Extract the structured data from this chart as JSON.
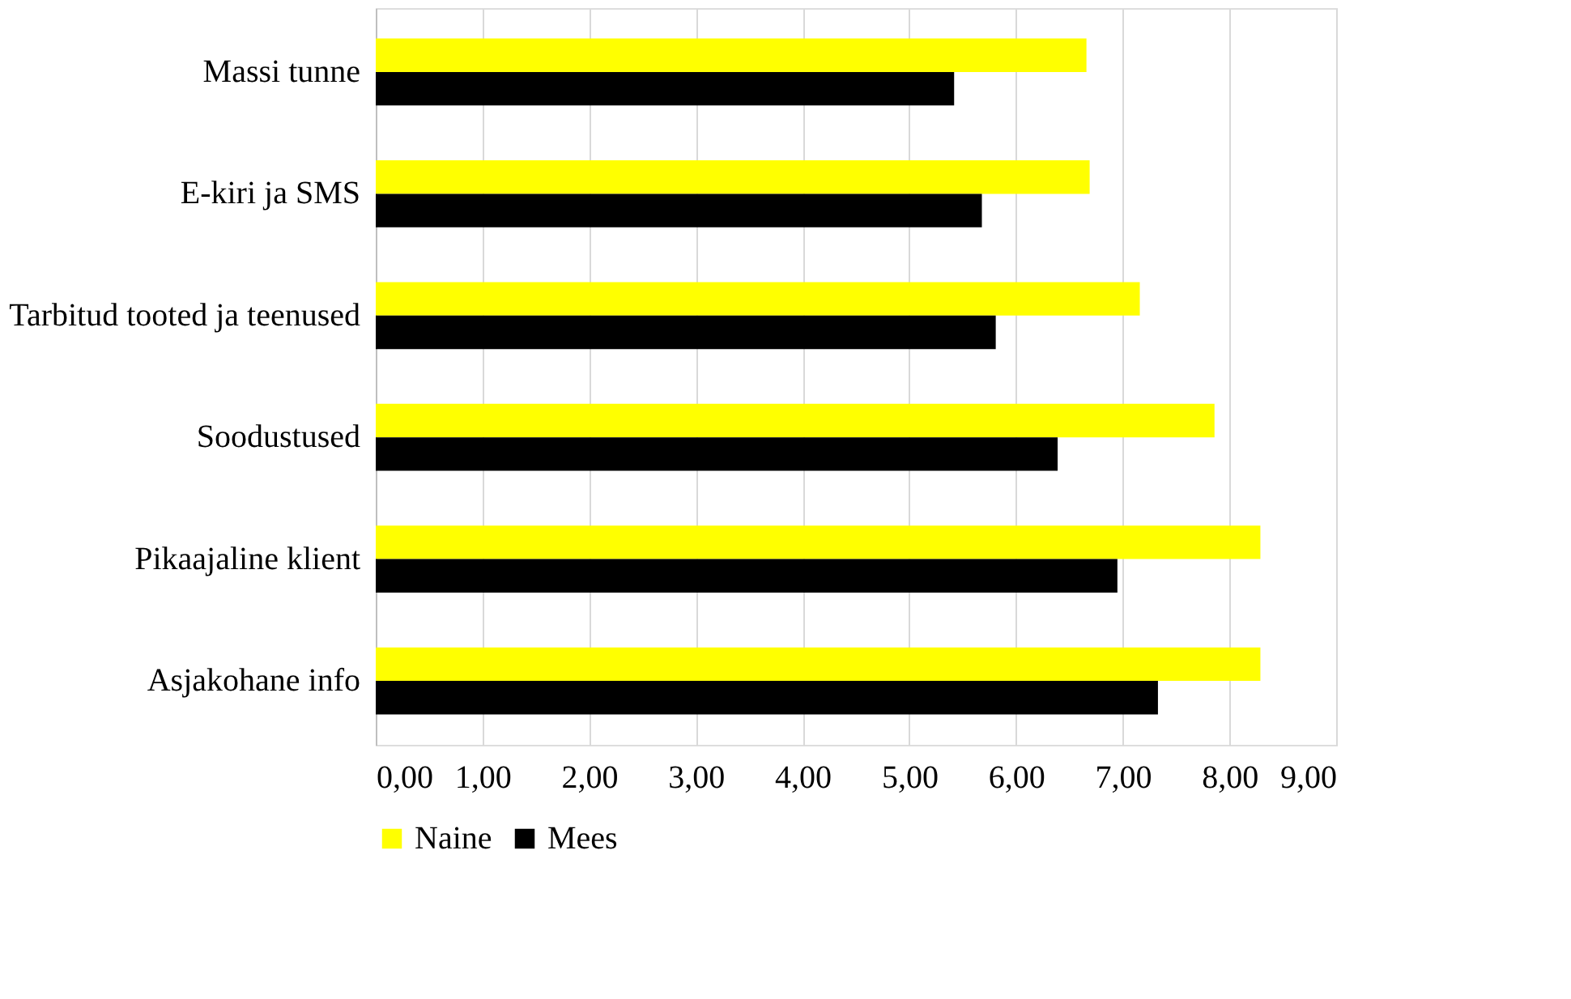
{
  "chart_data": {
    "type": "bar",
    "orientation": "horizontal",
    "categories": [
      "Massi tunne",
      "E-kiri ja SMS",
      "Tarbitud tooted ja teenused",
      "Soodustused",
      "Pikaajaline klient",
      "Asjakohane info"
    ],
    "series": [
      {
        "name": "Naine",
        "color": "#ffff00",
        "values": [
          6.66,
          6.69,
          7.16,
          7.86,
          8.29,
          8.29
        ]
      },
      {
        "name": "Mees",
        "color": "#000000",
        "values": [
          5.42,
          5.68,
          5.81,
          6.39,
          6.95,
          7.33
        ]
      }
    ],
    "xlim": [
      0,
      9
    ],
    "xticks": [
      {
        "value": 0,
        "label": "0,00"
      },
      {
        "value": 1,
        "label": "1,00"
      },
      {
        "value": 2,
        "label": "2,00"
      },
      {
        "value": 3,
        "label": "3,00"
      },
      {
        "value": 4,
        "label": "4,00"
      },
      {
        "value": 5,
        "label": "5,00"
      },
      {
        "value": 6,
        "label": "6,00"
      },
      {
        "value": 7,
        "label": "7,00"
      },
      {
        "value": 8,
        "label": "8,00"
      },
      {
        "value": 9,
        "label": "9,00"
      }
    ],
    "grid": "x",
    "legend": "bottom"
  }
}
